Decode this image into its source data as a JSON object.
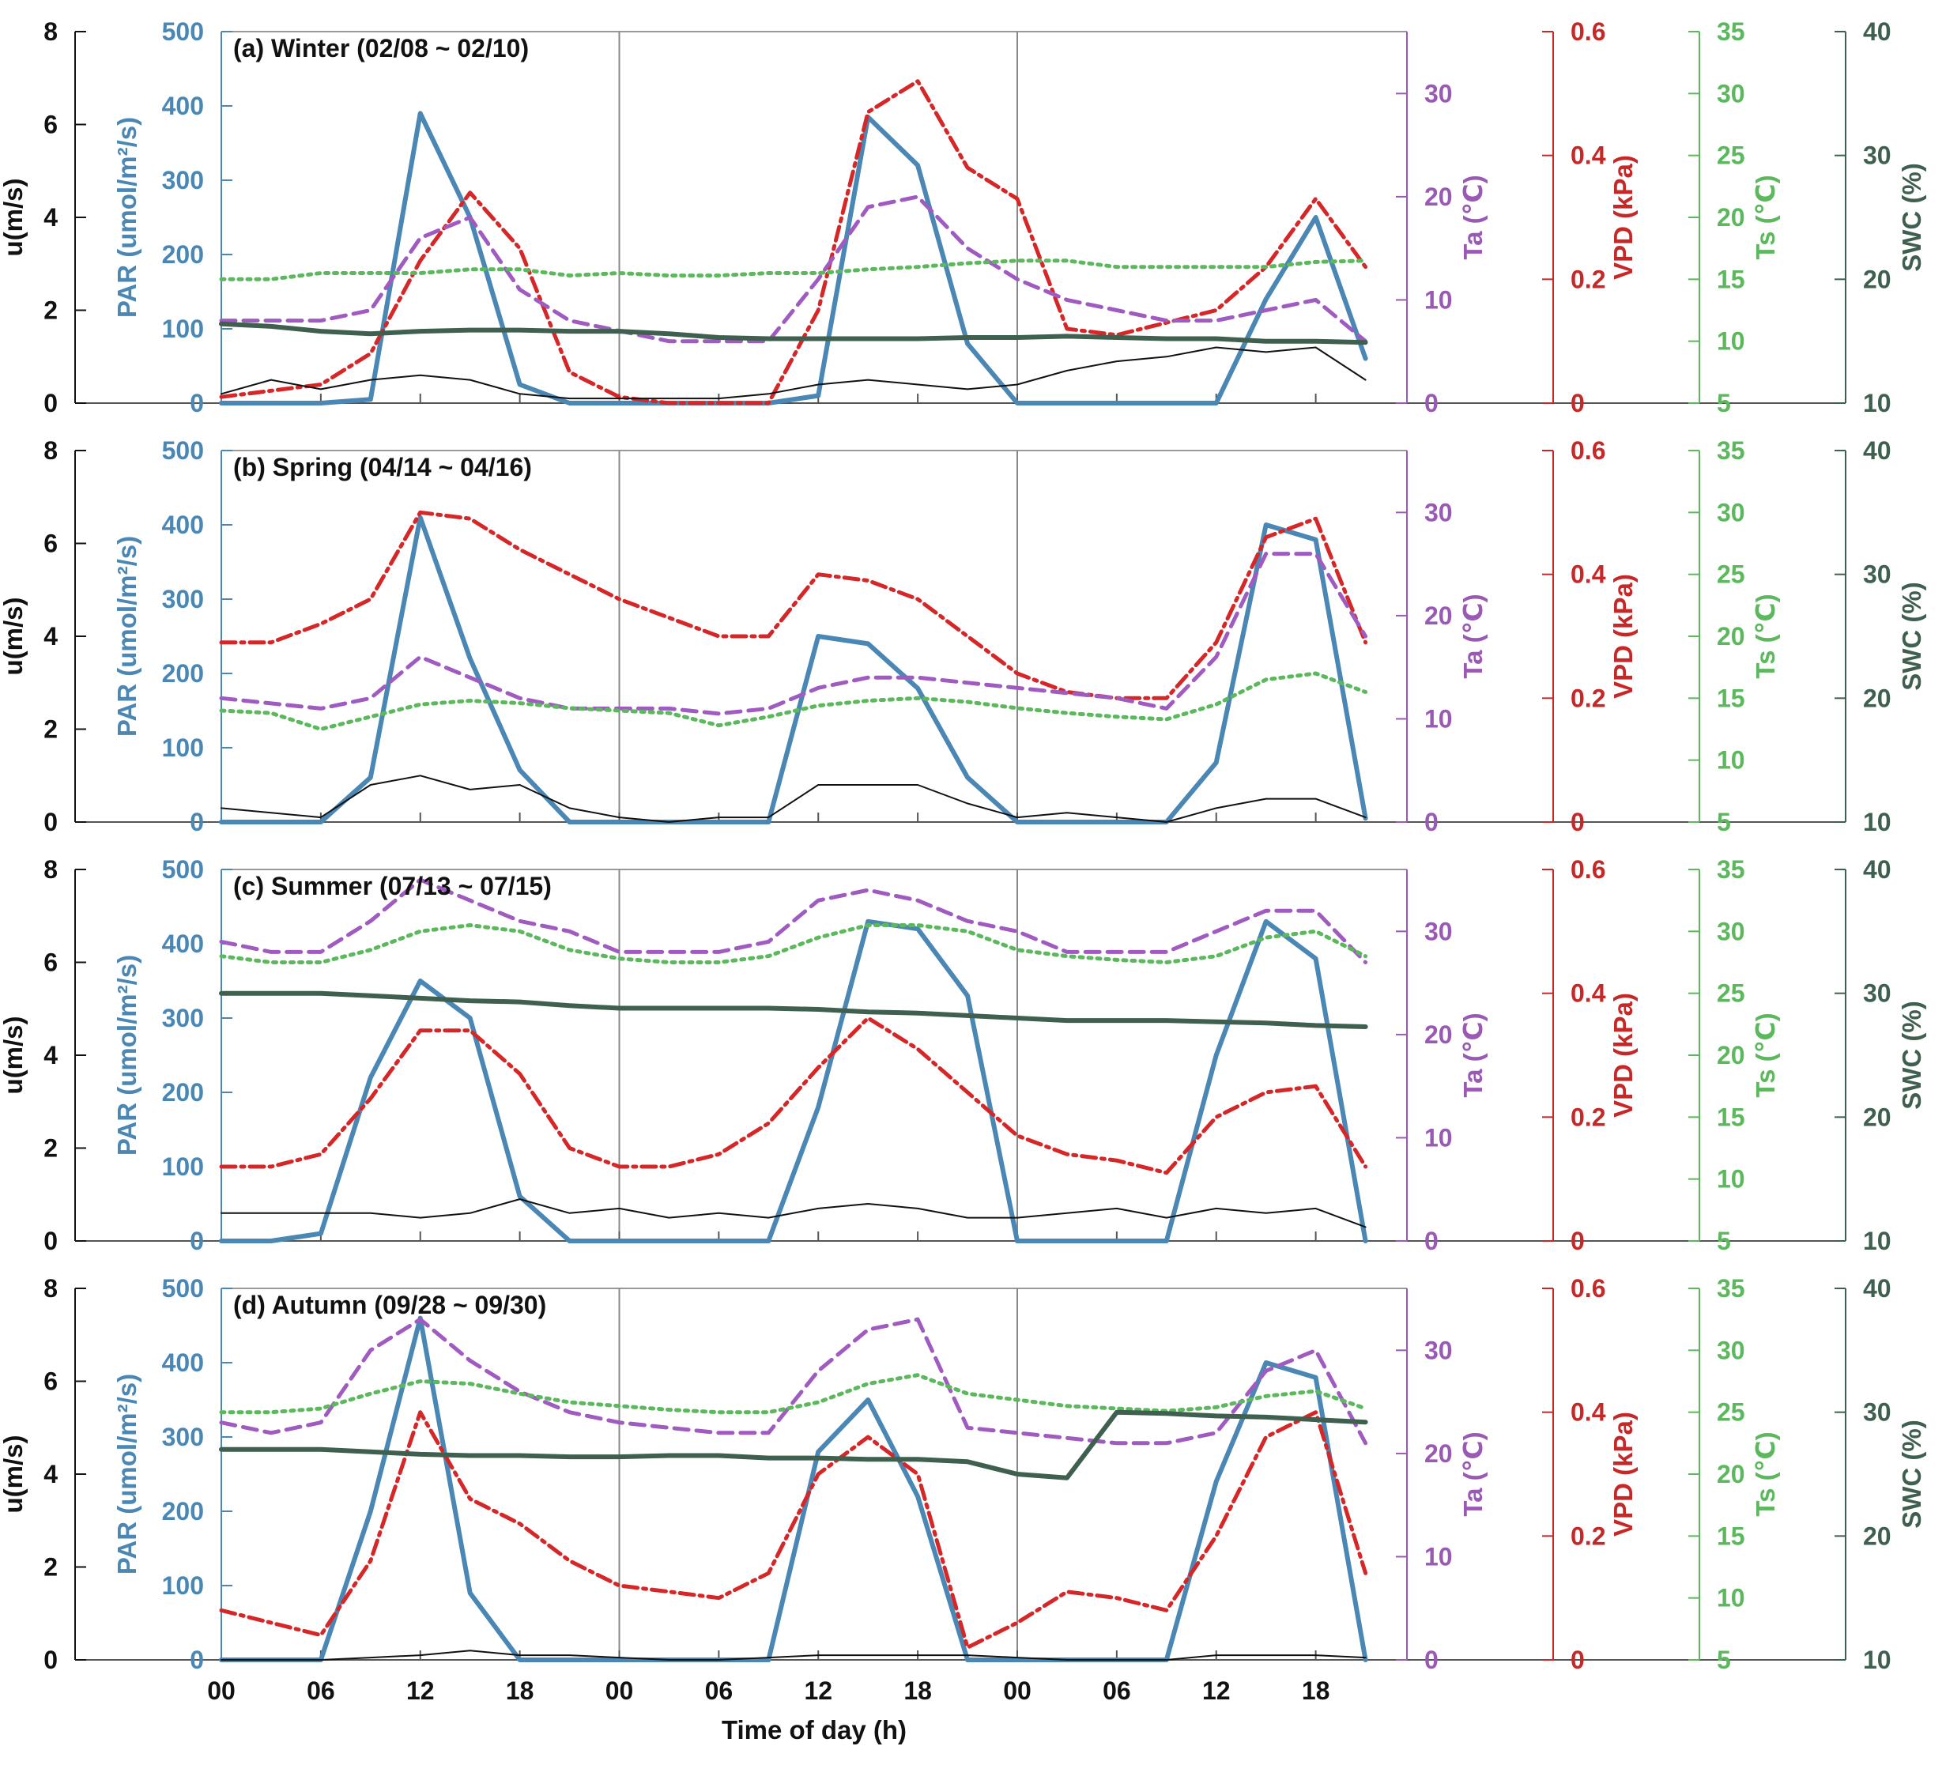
{
  "figure": {
    "xlabel": "Time of day (h)"
  },
  "axes_meta": [
    {
      "key": "u",
      "label": "u(m/s)",
      "ticks": [
        "0",
        "2",
        "4",
        "6",
        "8"
      ],
      "range": [
        0,
        8
      ],
      "color": "#111111"
    },
    {
      "key": "par",
      "label": "PAR (umol/m²/s)",
      "ticks": [
        "0",
        "100",
        "200",
        "300",
        "400",
        "500"
      ],
      "range": [
        0,
        500
      ],
      "color": "#4a87b5"
    },
    {
      "key": "ta",
      "label": "Ta (℃)",
      "ticks": [
        "0",
        "10",
        "20",
        "30"
      ],
      "range": [
        0,
        36
      ],
      "color": "#9b59b6"
    },
    {
      "key": "vpd",
      "label": "VPD (kPa)",
      "ticks": [
        "0",
        "0.2",
        "0.4",
        "0.6"
      ],
      "range": [
        0,
        0.6
      ],
      "color": "#c62828"
    },
    {
      "key": "ts",
      "label": "Ts (℃)",
      "ticks": [
        "5",
        "10",
        "15",
        "20",
        "25",
        "30",
        "35"
      ],
      "range": [
        5,
        35
      ],
      "color": "#5cb85c"
    },
    {
      "key": "swc",
      "label": "SWC (%)",
      "ticks": [
        "10",
        "20",
        "30",
        "40"
      ],
      "range": [
        10,
        40
      ],
      "color": "#3f5f4f"
    }
  ],
  "x_ticks": [
    "00",
    "06",
    "12",
    "18",
    "00",
    "06",
    "12",
    "18",
    "00",
    "06",
    "12",
    "18"
  ],
  "chart_data": [
    {
      "type": "line",
      "title": "(a) Winter (02/08 ~ 02/10)",
      "x": [
        0,
        3,
        6,
        9,
        12,
        15,
        18,
        21,
        24,
        27,
        30,
        33,
        36,
        39,
        42,
        45,
        48,
        51,
        54,
        57,
        60,
        63,
        66,
        69
      ],
      "series": [
        {
          "name": "PAR",
          "axis": "par",
          "values": [
            0,
            0,
            0,
            5,
            390,
            250,
            25,
            0,
            0,
            0,
            0,
            0,
            10,
            385,
            320,
            80,
            0,
            0,
            0,
            0,
            0,
            140,
            250,
            60
          ]
        },
        {
          "name": "VPD",
          "axis": "vpd",
          "values": [
            0.01,
            0.02,
            0.03,
            0.08,
            0.23,
            0.34,
            0.25,
            0.05,
            0.01,
            0.0,
            0.0,
            0.0,
            0.15,
            0.47,
            0.52,
            0.38,
            0.33,
            0.12,
            0.11,
            0.13,
            0.15,
            0.22,
            0.33,
            0.22
          ]
        },
        {
          "name": "Ta",
          "axis": "ta",
          "values": [
            8,
            8,
            8,
            9,
            16,
            18,
            11,
            8,
            7,
            6,
            6,
            6,
            12,
            19,
            20,
            15,
            12,
            10,
            9,
            8,
            8,
            9,
            10,
            6
          ]
        },
        {
          "name": "Ts",
          "axis": "ts",
          "values": [
            15,
            15,
            15.5,
            15.5,
            15.5,
            15.8,
            15.8,
            15.3,
            15.5,
            15.3,
            15.3,
            15.5,
            15.5,
            15.8,
            16,
            16.3,
            16.5,
            16.5,
            16,
            16,
            16,
            16,
            16.4,
            16.5
          ]
        },
        {
          "name": "SWC",
          "axis": "swc",
          "values": [
            16.4,
            16.2,
            15.8,
            15.6,
            15.8,
            15.9,
            15.9,
            15.8,
            15.8,
            15.6,
            15.3,
            15.2,
            15.2,
            15.2,
            15.2,
            15.3,
            15.3,
            15.4,
            15.3,
            15.2,
            15.2,
            15.0,
            15.0,
            14.9
          ]
        },
        {
          "name": "u",
          "axis": "u",
          "values": [
            0.2,
            0.5,
            0.3,
            0.5,
            0.6,
            0.5,
            0.2,
            0.1,
            0.1,
            0.1,
            0.1,
            0.2,
            0.4,
            0.5,
            0.4,
            0.3,
            0.4,
            0.7,
            0.9,
            1.0,
            1.2,
            1.1,
            1.2,
            0.5
          ]
        }
      ]
    },
    {
      "type": "line",
      "title": "(b) Spring (04/14 ~ 04/16)",
      "x": [
        0,
        3,
        6,
        9,
        12,
        15,
        18,
        21,
        24,
        27,
        30,
        33,
        36,
        39,
        42,
        45,
        48,
        51,
        54,
        57,
        60,
        63,
        66,
        69
      ],
      "series": [
        {
          "name": "PAR",
          "axis": "par",
          "values": [
            0,
            0,
            0,
            60,
            410,
            220,
            70,
            0,
            0,
            0,
            0,
            0,
            250,
            240,
            180,
            60,
            0,
            0,
            0,
            0,
            80,
            400,
            380,
            5
          ]
        },
        {
          "name": "VPD",
          "axis": "vpd",
          "values": [
            0.29,
            0.29,
            0.32,
            0.36,
            0.5,
            0.49,
            0.44,
            0.4,
            0.36,
            0.33,
            0.3,
            0.3,
            0.4,
            0.39,
            0.36,
            0.3,
            0.24,
            0.21,
            0.2,
            0.2,
            0.29,
            0.46,
            0.49,
            0.29
          ]
        },
        {
          "name": "Ta",
          "axis": "ta",
          "values": [
            12,
            11.5,
            11,
            12,
            16,
            14,
            12,
            11,
            11,
            11,
            10.5,
            11,
            13,
            14,
            14,
            13.5,
            13,
            12.5,
            12,
            11,
            16,
            26,
            26,
            18
          ]
        },
        {
          "name": "Ts",
          "axis": "ts",
          "values": [
            14,
            13.8,
            12.5,
            13.5,
            14.5,
            14.8,
            14.6,
            14.2,
            14.0,
            13.8,
            12.8,
            13.5,
            14.4,
            14.8,
            15.0,
            14.7,
            14.2,
            13.8,
            13.5,
            13.3,
            14.5,
            16.5,
            17,
            15.5
          ]
        },
        {
          "name": "u",
          "axis": "u",
          "values": [
            0.3,
            0.2,
            0.1,
            0.8,
            1.0,
            0.7,
            0.8,
            0.3,
            0.1,
            0.0,
            0.1,
            0.1,
            0.8,
            0.8,
            0.8,
            0.4,
            0.1,
            0.2,
            0.1,
            0.0,
            0.3,
            0.5,
            0.5,
            0.1
          ]
        }
      ]
    },
    {
      "type": "line",
      "title": "(c) Summer (07/13 ~ 07/15)",
      "x": [
        0,
        3,
        6,
        9,
        12,
        15,
        18,
        21,
        24,
        27,
        30,
        33,
        36,
        39,
        42,
        45,
        48,
        51,
        54,
        57,
        60,
        63,
        66,
        69
      ],
      "series": [
        {
          "name": "PAR",
          "axis": "par",
          "values": [
            0,
            0,
            10,
            220,
            350,
            300,
            60,
            0,
            0,
            0,
            0,
            0,
            180,
            430,
            420,
            330,
            0,
            0,
            0,
            0,
            250,
            430,
            380,
            0
          ]
        },
        {
          "name": "VPD",
          "axis": "vpd",
          "values": [
            0.12,
            0.12,
            0.14,
            0.23,
            0.34,
            0.34,
            0.27,
            0.15,
            0.12,
            0.12,
            0.14,
            0.19,
            0.28,
            0.36,
            0.31,
            0.24,
            0.17,
            0.14,
            0.13,
            0.11,
            0.2,
            0.24,
            0.25,
            0.12
          ]
        },
        {
          "name": "Ta",
          "axis": "ta",
          "values": [
            29,
            28,
            28,
            31,
            35,
            33,
            31,
            30,
            28,
            28,
            28,
            29,
            33,
            34,
            33,
            31,
            30,
            28,
            28,
            28,
            30,
            32,
            32,
            27
          ]
        },
        {
          "name": "Ts",
          "axis": "ts",
          "values": [
            28,
            27.5,
            27.5,
            28.5,
            30,
            30.5,
            30,
            28.5,
            27.8,
            27.5,
            27.5,
            28,
            29.5,
            30.5,
            30.5,
            30,
            28.5,
            28,
            27.7,
            27.5,
            28,
            29.5,
            30,
            28
          ]
        },
        {
          "name": "SWC",
          "axis": "swc",
          "values": [
            30.0,
            30.0,
            30.0,
            29.8,
            29.6,
            29.4,
            29.3,
            29.0,
            28.8,
            28.8,
            28.8,
            28.8,
            28.7,
            28.5,
            28.4,
            28.2,
            28.0,
            27.8,
            27.8,
            27.8,
            27.7,
            27.6,
            27.4,
            27.3
          ]
        },
        {
          "name": "u",
          "axis": "u",
          "values": [
            0.6,
            0.6,
            0.6,
            0.6,
            0.5,
            0.6,
            0.9,
            0.6,
            0.7,
            0.5,
            0.6,
            0.5,
            0.7,
            0.8,
            0.7,
            0.5,
            0.5,
            0.6,
            0.7,
            0.5,
            0.7,
            0.6,
            0.7,
            0.3
          ]
        }
      ]
    },
    {
      "type": "line",
      "title": "(d) Autumn (09/28 ~ 09/30)",
      "x": [
        0,
        3,
        6,
        9,
        12,
        15,
        18,
        21,
        24,
        27,
        30,
        33,
        36,
        39,
        42,
        45,
        48,
        51,
        54,
        57,
        60,
        63,
        66,
        69
      ],
      "series": [
        {
          "name": "PAR",
          "axis": "par",
          "values": [
            0,
            0,
            0,
            200,
            460,
            90,
            0,
            0,
            0,
            0,
            0,
            0,
            280,
            350,
            220,
            0,
            0,
            0,
            0,
            0,
            240,
            400,
            380,
            0
          ]
        },
        {
          "name": "VPD",
          "axis": "vpd",
          "values": [
            0.08,
            0.06,
            0.04,
            0.16,
            0.4,
            0.26,
            0.22,
            0.16,
            0.12,
            0.11,
            0.1,
            0.14,
            0.3,
            0.36,
            0.3,
            0.02,
            0.06,
            0.11,
            0.1,
            0.08,
            0.2,
            0.36,
            0.4,
            0.14
          ]
        },
        {
          "name": "Ta",
          "axis": "ta",
          "values": [
            23,
            22,
            23,
            30,
            33,
            29,
            26,
            24,
            23,
            22.5,
            22,
            22,
            28,
            32,
            33,
            22.5,
            22,
            21.5,
            21,
            21,
            22,
            28,
            30,
            21
          ]
        },
        {
          "name": "Ts",
          "axis": "ts",
          "values": [
            25,
            25,
            25.3,
            26.5,
            27.5,
            27.3,
            26.5,
            25.8,
            25.5,
            25.2,
            25,
            25,
            25.8,
            27.3,
            28,
            26.5,
            26,
            25.5,
            25.3,
            25.1,
            25.4,
            26.3,
            26.7,
            25.3
          ]
        },
        {
          "name": "SWC",
          "axis": "swc",
          "values": [
            27.0,
            27.0,
            27.0,
            26.8,
            26.6,
            26.5,
            26.5,
            26.4,
            26.4,
            26.5,
            26.5,
            26.3,
            26.3,
            26.2,
            26.2,
            26.0,
            25.0,
            24.7,
            30.0,
            29.9,
            29.7,
            29.6,
            29.4,
            29.2
          ]
        },
        {
          "name": "u",
          "axis": "u",
          "values": [
            0.0,
            0.0,
            0.0,
            0.05,
            0.1,
            0.2,
            0.1,
            0.1,
            0.05,
            0.0,
            0.0,
            0.05,
            0.1,
            0.1,
            0.1,
            0.1,
            0.05,
            0.0,
            0.0,
            0.0,
            0.1,
            0.1,
            0.1,
            0.05
          ]
        }
      ]
    }
  ]
}
